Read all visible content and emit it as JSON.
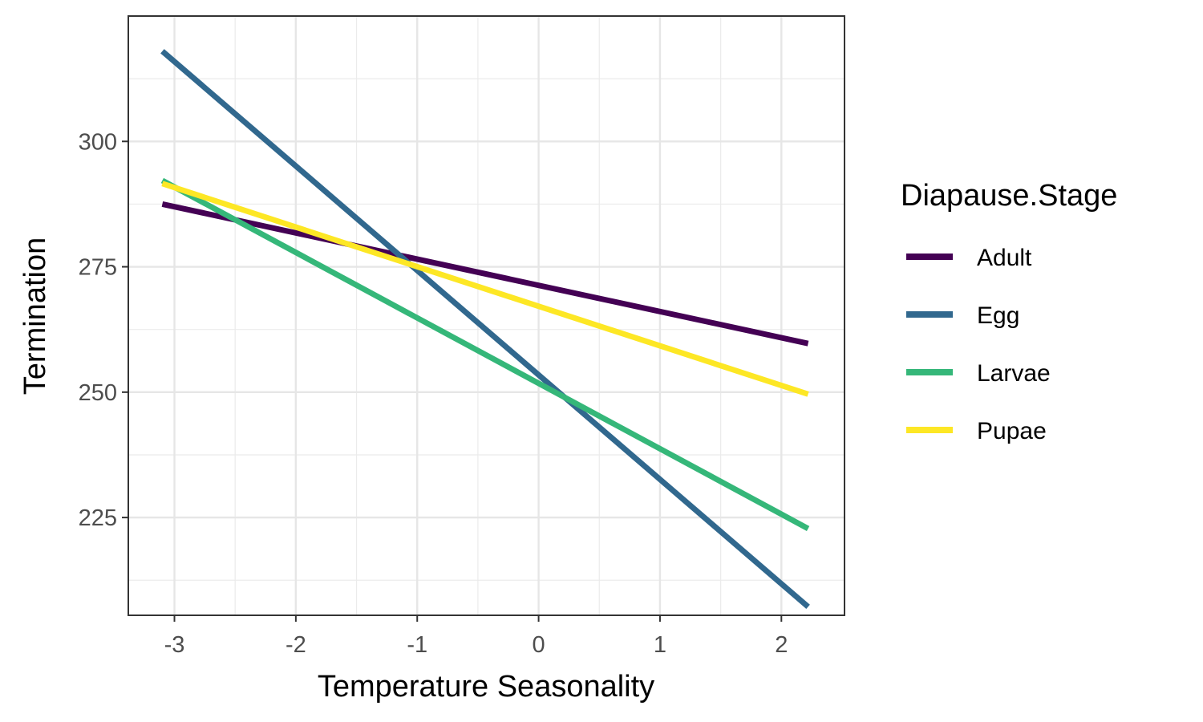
{
  "chart_data": {
    "type": "line",
    "xlabel": "Temperature Seasonality",
    "ylabel": "Termination",
    "xlim": [
      -3.38,
      2.52
    ],
    "ylim": [
      205.5,
      325.0
    ],
    "x_ticks": [
      -3,
      -2,
      -1,
      0,
      1,
      2
    ],
    "x_tick_labels": [
      "-3",
      "-2",
      "-1",
      "0",
      "1",
      "2"
    ],
    "y_ticks": [
      225,
      250,
      275,
      300
    ],
    "y_tick_labels": [
      "225",
      "250",
      "275",
      "300"
    ],
    "x_minor_ticks": [
      -2.5,
      -1.5,
      -0.5,
      0.5,
      1.5
    ],
    "y_minor_ticks": [
      212.5,
      237.5,
      262.5,
      287.5,
      312.5
    ],
    "grid": true,
    "legend_title": "Diapause.Stage",
    "legend_position": "right",
    "series": [
      {
        "name": "Adult",
        "color": "#440154",
        "x": [
          -3.1,
          2.22
        ],
        "y": [
          287.5,
          259.7
        ]
      },
      {
        "name": "Egg",
        "color": "#31688E",
        "x": [
          -3.1,
          2.22
        ],
        "y": [
          318.0,
          207.2
        ]
      },
      {
        "name": "Larvae",
        "color": "#35B779",
        "x": [
          -3.1,
          2.22
        ],
        "y": [
          292.2,
          222.8
        ]
      },
      {
        "name": "Pupae",
        "color": "#FDE725",
        "x": [
          -3.1,
          2.22
        ],
        "y": [
          291.6,
          249.6
        ]
      }
    ]
  }
}
